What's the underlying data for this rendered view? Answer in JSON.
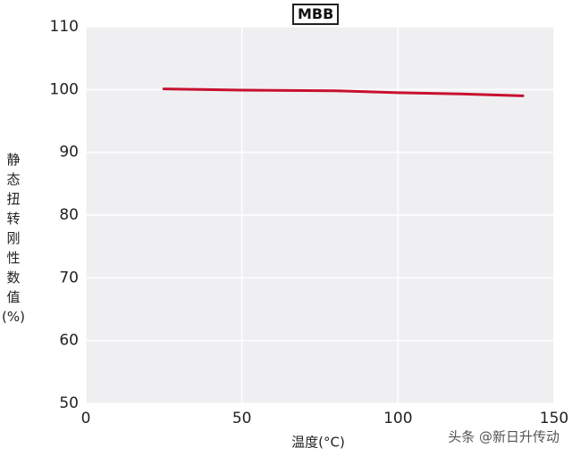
{
  "chart_data": {
    "type": "line",
    "title": "MBB",
    "x_label": "温度(°C)",
    "y_label": "静态扭转刚性数值(%)",
    "x": [
      25,
      50,
      80,
      100,
      120,
      140
    ],
    "series": [
      {
        "color": "#c8102e",
        "values": [
          100.1,
          99.9,
          99.8,
          99.5,
          99.3,
          99.0
        ]
      }
    ],
    "xlim": [
      0,
      150
    ],
    "xticks": [
      0,
      50,
      100,
      150
    ],
    "ylim": [
      50,
      110
    ],
    "yticks": [
      50,
      60,
      70,
      80,
      90,
      100,
      110
    ],
    "grid": true,
    "watermark": "头条 @新日升传动"
  }
}
